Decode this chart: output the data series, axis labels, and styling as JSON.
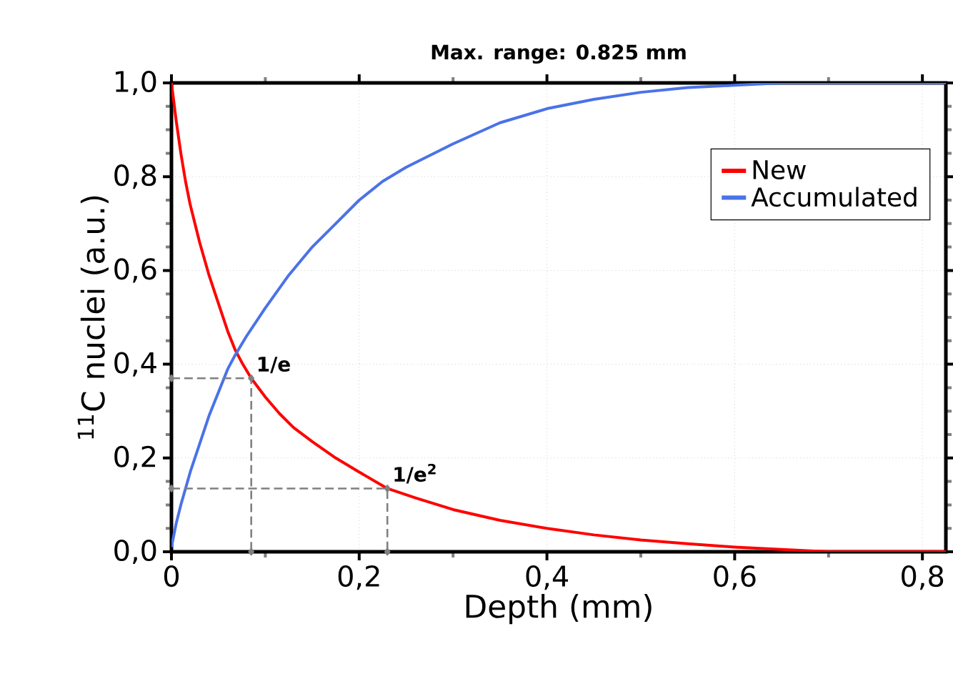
{
  "chart_data": {
    "type": "line",
    "title": "Max. range: 0.825 mm",
    "xlabel": "Depth (mm)",
    "ylabel": "$^{11}$C nuclei (a.u.)",
    "xlim": [
      0,
      0.825
    ],
    "ylim": [
      0,
      1.0
    ],
    "xticks": [
      0,
      {
        "value": 0.2,
        "label": "0,2"
      },
      {
        "value": 0.4,
        "label": "0,4"
      },
      {
        "value": 0.6,
        "label": "0,6"
      },
      {
        "value": 0.8,
        "label": "0,8"
      }
    ],
    "yticks": [
      {
        "value": 0,
        "label": "0,0"
      },
      {
        "value": 0.2,
        "label": "0,2"
      },
      {
        "value": 0.4,
        "label": "0,4"
      },
      {
        "value": 0.6,
        "label": "0,6"
      },
      {
        "value": 0.8,
        "label": "0,8"
      },
      {
        "value": 1.0,
        "label": "1,0"
      }
    ],
    "grid": true,
    "legend": "top right",
    "series": [
      {
        "name": "New",
        "color": "#ff0000",
        "x": [
          0,
          0.005,
          0.01,
          0.015,
          0.02,
          0.03,
          0.04,
          0.05,
          0.06,
          0.068,
          0.076,
          0.085,
          0.1,
          0.115,
          0.13,
          0.15,
          0.175,
          0.2,
          0.23,
          0.26,
          0.3,
          0.35,
          0.4,
          0.45,
          0.5,
          0.55,
          0.6,
          0.65,
          0.7,
          0.825
        ],
        "values": [
          1.0,
          0.92,
          0.85,
          0.79,
          0.74,
          0.66,
          0.59,
          0.53,
          0.47,
          0.43,
          0.4,
          0.37,
          0.33,
          0.295,
          0.265,
          0.235,
          0.2,
          0.17,
          0.135,
          0.115,
          0.09,
          0.067,
          0.05,
          0.036,
          0.025,
          0.017,
          0.01,
          0.005,
          0.0,
          0.0
        ]
      },
      {
        "name": "Accumulated",
        "color": "#4a72e8",
        "x": [
          0,
          0.005,
          0.01,
          0.02,
          0.03,
          0.04,
          0.05,
          0.06,
          0.068,
          0.08,
          0.1,
          0.125,
          0.15,
          0.175,
          0.2,
          0.225,
          0.25,
          0.3,
          0.35,
          0.4,
          0.45,
          0.5,
          0.55,
          0.6,
          0.65,
          0.825
        ],
        "values": [
          0.01,
          0.06,
          0.1,
          0.17,
          0.23,
          0.29,
          0.34,
          0.39,
          0.42,
          0.46,
          0.52,
          0.59,
          0.65,
          0.7,
          0.75,
          0.79,
          0.82,
          0.87,
          0.915,
          0.945,
          0.965,
          0.98,
          0.99,
          0.995,
          1.0,
          1.0
        ]
      },
      {
        "type": "line",
        "color": "#808080",
        "line_style": "dashed",
        "marker": "diamond",
        "x": [
          0,
          0.085,
          0.085
        ],
        "values": [
          0.37,
          0.37,
          0
        ]
      },
      {
        "type": "line",
        "color": "#808080",
        "line_style": "dashed",
        "marker": "diamond",
        "x": [
          0,
          0.23,
          0.23
        ],
        "values": [
          0.135,
          0.135,
          0
        ]
      }
    ],
    "annotations": [
      {
        "text": "1/e",
        "x": 0.085,
        "y": 0.37
      },
      {
        "text": "1/e$^{2}$",
        "x": 0.23,
        "y": 0.135
      }
    ]
  }
}
